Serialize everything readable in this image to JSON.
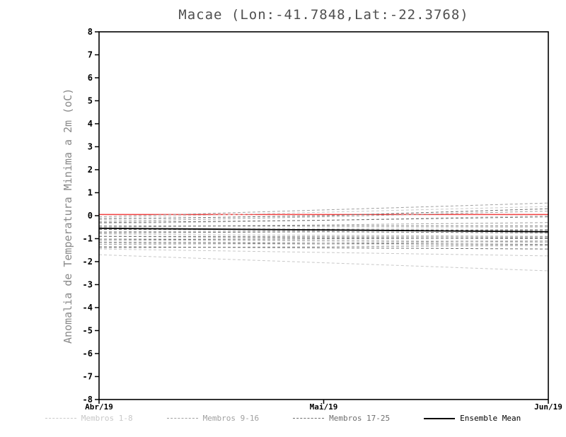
{
  "title": "Macae (Lon:-41.7848,Lat:-22.3768)",
  "chart_data": {
    "type": "line",
    "title": "Macae (Lon:-41.7848,Lat:-22.3768)",
    "xlabel": "",
    "ylabel": "Anomalia de Temperatura Minima a 2m (oC)",
    "ylim": [
      -8,
      8
    ],
    "ytick_step": 1,
    "x_categories": [
      "Abr/19",
      "Mai/19",
      "Jun/19"
    ],
    "grid": false,
    "legend_position": "bottom",
    "legend": [
      {
        "label": "Membros 1-8",
        "style": "dashed",
        "color": "#c8c8c8"
      },
      {
        "label": "Membros 9-16",
        "style": "dashed",
        "color": "#a0a0a0"
      },
      {
        "label": "Membros 17-25",
        "style": "dashed",
        "color": "#6e6e6e"
      },
      {
        "label": "Ensemble Mean",
        "style": "solid",
        "color": "#000000"
      }
    ],
    "series": [
      {
        "name": "red-reference-line",
        "color": "#f04040",
        "style": "solid",
        "width": 1.6,
        "values": [
          0.05,
          0.05,
          0.05
        ]
      },
      {
        "name": "membro-1",
        "group": "Membros 1-8",
        "color": "#c8c8c8",
        "style": "dashed",
        "width": 1,
        "values": [
          -0.1,
          0.15,
          0.4
        ]
      },
      {
        "name": "membro-2",
        "group": "Membros 1-8",
        "color": "#c8c8c8",
        "style": "dashed",
        "width": 1,
        "values": [
          -0.35,
          -0.2,
          0.0
        ]
      },
      {
        "name": "membro-3",
        "group": "Membros 1-8",
        "color": "#c8c8c8",
        "style": "dashed",
        "width": 1,
        "values": [
          -0.6,
          -0.55,
          -0.5
        ]
      },
      {
        "name": "membro-4",
        "group": "Membros 1-8",
        "color": "#c8c8c8",
        "style": "dashed",
        "width": 1,
        "values": [
          -0.8,
          -0.85,
          -0.9
        ]
      },
      {
        "name": "membro-5",
        "group": "Membros 1-8",
        "color": "#c8c8c8",
        "style": "dashed",
        "width": 1,
        "values": [
          -1.0,
          -1.05,
          -1.1
        ]
      },
      {
        "name": "membro-6",
        "group": "Membros 1-8",
        "color": "#c8c8c8",
        "style": "dashed",
        "width": 1,
        "values": [
          -1.2,
          -1.25,
          -1.3
        ]
      },
      {
        "name": "membro-7",
        "group": "Membros 1-8",
        "color": "#c8c8c8",
        "style": "dashed",
        "width": 1,
        "values": [
          -1.45,
          -1.6,
          -1.75
        ]
      },
      {
        "name": "membro-8",
        "group": "Membros 1-8",
        "color": "#c8c8c8",
        "style": "dashed",
        "width": 1,
        "values": [
          -1.7,
          -2.05,
          -2.4
        ]
      },
      {
        "name": "membro-9",
        "group": "Membros 9-16",
        "color": "#a0a0a0",
        "style": "dashed",
        "width": 1,
        "values": [
          -0.05,
          0.25,
          0.55
        ]
      },
      {
        "name": "membro-10",
        "group": "Membros 9-16",
        "color": "#a0a0a0",
        "style": "dashed",
        "width": 1,
        "values": [
          -0.25,
          -0.05,
          0.2
        ]
      },
      {
        "name": "membro-11",
        "group": "Membros 9-16",
        "color": "#a0a0a0",
        "style": "dashed",
        "width": 1,
        "values": [
          -0.5,
          -0.4,
          -0.3
        ]
      },
      {
        "name": "membro-12",
        "group": "Membros 9-16",
        "color": "#a0a0a0",
        "style": "dashed",
        "width": 1,
        "values": [
          -0.7,
          -0.65,
          -0.6
        ]
      },
      {
        "name": "membro-13",
        "group": "Membros 9-16",
        "color": "#a0a0a0",
        "style": "dashed",
        "width": 1,
        "values": [
          -0.9,
          -0.9,
          -0.9
        ]
      },
      {
        "name": "membro-14",
        "group": "Membros 9-16",
        "color": "#a0a0a0",
        "style": "dashed",
        "width": 1,
        "values": [
          -1.05,
          -1.1,
          -1.15
        ]
      },
      {
        "name": "membro-15",
        "group": "Membros 9-16",
        "color": "#a0a0a0",
        "style": "dashed",
        "width": 1,
        "values": [
          -1.25,
          -1.2,
          -1.1
        ]
      },
      {
        "name": "membro-16",
        "group": "Membros 9-16",
        "color": "#a0a0a0",
        "style": "dashed",
        "width": 1,
        "values": [
          -1.4,
          -1.35,
          -1.3
        ]
      },
      {
        "name": "membro-17",
        "group": "Membros 17-25",
        "color": "#6e6e6e",
        "style": "dashed",
        "width": 1,
        "values": [
          -0.15,
          0.0,
          0.3
        ]
      },
      {
        "name": "membro-18",
        "group": "Membros 17-25",
        "color": "#6e6e6e",
        "style": "dashed",
        "width": 1,
        "values": [
          -0.3,
          -0.2,
          -0.05
        ]
      },
      {
        "name": "membro-19",
        "group": "Membros 17-25",
        "color": "#6e6e6e",
        "style": "dashed",
        "width": 1,
        "values": [
          -0.45,
          -0.45,
          -0.45
        ]
      },
      {
        "name": "membro-20",
        "group": "Membros 17-25",
        "color": "#6e6e6e",
        "style": "dashed",
        "width": 1,
        "values": [
          -0.6,
          -0.6,
          -0.65
        ]
      },
      {
        "name": "membro-21",
        "group": "Membros 17-25",
        "color": "#6e6e6e",
        "style": "dashed",
        "width": 1,
        "values": [
          -0.75,
          -0.7,
          -0.75
        ]
      },
      {
        "name": "membro-22",
        "group": "Membros 17-25",
        "color": "#6e6e6e",
        "style": "dashed",
        "width": 1,
        "values": [
          -0.9,
          -0.95,
          -1.0
        ]
      },
      {
        "name": "membro-23",
        "group": "Membros 17-25",
        "color": "#6e6e6e",
        "style": "dashed",
        "width": 1,
        "values": [
          -1.05,
          -1.0,
          -0.95
        ]
      },
      {
        "name": "membro-24",
        "group": "Membros 17-25",
        "color": "#6e6e6e",
        "style": "dashed",
        "width": 1,
        "values": [
          -1.15,
          -1.2,
          -1.25
        ]
      },
      {
        "name": "membro-25",
        "group": "Membros 17-25",
        "color": "#6e6e6e",
        "style": "dashed",
        "width": 1,
        "values": [
          -1.35,
          -1.4,
          -1.45
        ]
      },
      {
        "name": "ensemble-mean",
        "color": "#000000",
        "style": "solid",
        "width": 1.8,
        "values": [
          -0.55,
          -0.62,
          -0.7
        ]
      }
    ]
  }
}
